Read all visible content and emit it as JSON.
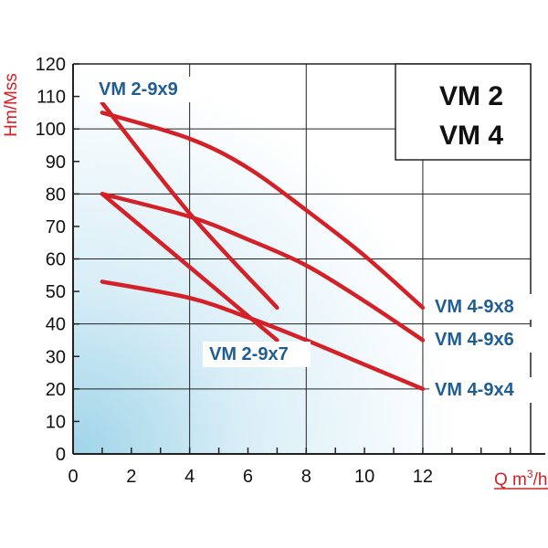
{
  "chart_data": {
    "type": "line",
    "title": "",
    "model_box": [
      "VM 2",
      "VM 4"
    ],
    "ylabel": "Hm/Mss",
    "xlabel_main": "Q m",
    "xlabel_sup": "3",
    "xlabel_tail": "/h",
    "xlim": [
      0,
      15.7
    ],
    "ylim": [
      0,
      120
    ],
    "grid": true,
    "x_ticks": [
      0,
      2,
      4,
      6,
      8,
      10,
      12
    ],
    "y_ticks": [
      0,
      10,
      20,
      30,
      40,
      50,
      60,
      70,
      80,
      90,
      100,
      110,
      120
    ],
    "series": [
      {
        "name": "VM 2-9x9",
        "points": [
          [
            1,
            108
          ],
          [
            4,
            74
          ],
          [
            7,
            45
          ]
        ]
      },
      {
        "name": "VM 2-9x7",
        "points": [
          [
            1,
            80
          ],
          [
            4,
            57.5
          ],
          [
            7,
            35
          ]
        ]
      },
      {
        "name": "VM 4-9x8",
        "points": [
          [
            1,
            105
          ],
          [
            4,
            97
          ],
          [
            6,
            88
          ],
          [
            8,
            75
          ],
          [
            10,
            61
          ],
          [
            12,
            45
          ]
        ]
      },
      {
        "name": "VM 4-9x6",
        "points": [
          [
            1,
            80
          ],
          [
            4,
            73
          ],
          [
            6,
            66
          ],
          [
            8,
            58
          ],
          [
            10,
            47
          ],
          [
            12,
            35
          ]
        ]
      },
      {
        "name": "VM 4-9x4",
        "points": [
          [
            1,
            53
          ],
          [
            4,
            48
          ],
          [
            6,
            42
          ],
          [
            8,
            35
          ],
          [
            10,
            27.5
          ],
          [
            12,
            20
          ]
        ]
      }
    ],
    "colors": {
      "curve": "#d42027",
      "label": "#1f5d93",
      "axis_title": "#d42027",
      "grid": "#222222",
      "gradient_deep": "#9fd4e8"
    }
  }
}
